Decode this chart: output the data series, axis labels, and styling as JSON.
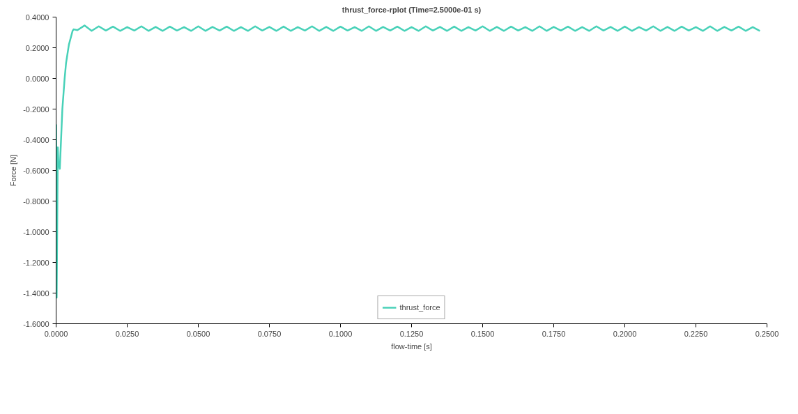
{
  "chart_data": {
    "type": "line",
    "title": "thrust_force-rplot (Time=2.5000e-01 s)",
    "xlabel": "flow-time [s]",
    "ylabel": "Force [N]",
    "xlim": [
      0,
      0.25
    ],
    "ylim": [
      -1.6,
      0.4
    ],
    "xticks": [
      {
        "value": 0,
        "label": "0.0000"
      },
      {
        "value": 0.025,
        "label": "0.0250"
      },
      {
        "value": 0.05,
        "label": "0.0500"
      },
      {
        "value": 0.075,
        "label": "0.0750"
      },
      {
        "value": 0.1,
        "label": "0.1000"
      },
      {
        "value": 0.125,
        "label": "0.1250"
      },
      {
        "value": 0.15,
        "label": "0.1500"
      },
      {
        "value": 0.175,
        "label": "0.1750"
      },
      {
        "value": 0.2,
        "label": "0.2000"
      },
      {
        "value": 0.225,
        "label": "0.2250"
      },
      {
        "value": 0.25,
        "label": "0.2500"
      }
    ],
    "yticks": [
      {
        "value": -1.6,
        "label": "-1.6000"
      },
      {
        "value": -1.4,
        "label": "-1.4000"
      },
      {
        "value": -1.2,
        "label": "-1.2000"
      },
      {
        "value": -1.0,
        "label": "-1.0000"
      },
      {
        "value": -0.8,
        "label": "-0.8000"
      },
      {
        "value": -0.6,
        "label": "-0.6000"
      },
      {
        "value": -0.4,
        "label": "-0.4000"
      },
      {
        "value": -0.2,
        "label": "-0.2000"
      },
      {
        "value": 0,
        "label": "0.0000"
      },
      {
        "value": 0.2,
        "label": "0.2000"
      },
      {
        "value": 0.4,
        "label": "0.4000"
      }
    ],
    "grid": false,
    "legend": "bottom",
    "line_style": "solid",
    "marker": "none",
    "series": [
      {
        "name": "thrust_force",
        "color": "#48d1b8",
        "x": [
          0,
          0.0002,
          0.0006,
          0.0008,
          0.0013,
          0.0022,
          0.003,
          0.0035,
          0.0045,
          0.0058,
          0.0062,
          0.0075,
          0.01,
          0.0125,
          0.015,
          0.0175,
          0.02,
          0.0225,
          0.025,
          0.0275,
          0.03,
          0.0325,
          0.035,
          0.0375,
          0.04,
          0.0425,
          0.045,
          0.0475,
          0.05,
          0.0525,
          0.055,
          0.0575,
          0.06,
          0.0625,
          0.065,
          0.0675,
          0.07,
          0.0725,
          0.075,
          0.0775,
          0.08,
          0.0825,
          0.085,
          0.0875,
          0.09,
          0.0925,
          0.095,
          0.0975,
          0.1,
          0.1025,
          0.105,
          0.1075,
          0.11,
          0.1125,
          0.115,
          0.1175,
          0.12,
          0.1225,
          0.125,
          0.1275,
          0.13,
          0.1325,
          0.135,
          0.1375,
          0.14,
          0.1425,
          0.145,
          0.1475,
          0.15,
          0.1525,
          0.155,
          0.1575,
          0.16,
          0.1625,
          0.165,
          0.1675,
          0.17,
          0.1725,
          0.175,
          0.1775,
          0.18,
          0.1825,
          0.185,
          0.1875,
          0.19,
          0.1925,
          0.195,
          0.1975,
          0.2,
          0.2025,
          0.205,
          0.2075,
          0.21,
          0.2125,
          0.215,
          0.2175,
          0.22,
          0.2225,
          0.225,
          0.2275,
          0.23,
          0.2325,
          0.235,
          0.2375,
          0.24,
          0.2425,
          0.245,
          0.2475
        ],
        "values": [
          -0.3,
          -1.43,
          -0.45,
          -0.55,
          -0.59,
          -0.2,
          0.0,
          0.1,
          0.22,
          0.31,
          0.32,
          0.315,
          0.345,
          0.31,
          0.34,
          0.312,
          0.338,
          0.31,
          0.335,
          0.312,
          0.34,
          0.31,
          0.336,
          0.31,
          0.338,
          0.312,
          0.335,
          0.31,
          0.34,
          0.31,
          0.336,
          0.312,
          0.338,
          0.31,
          0.335,
          0.31,
          0.34,
          0.312,
          0.336,
          0.31,
          0.338,
          0.31,
          0.335,
          0.312,
          0.34,
          0.31,
          0.336,
          0.31,
          0.338,
          0.312,
          0.335,
          0.31,
          0.34,
          0.31,
          0.336,
          0.312,
          0.338,
          0.31,
          0.335,
          0.31,
          0.34,
          0.312,
          0.336,
          0.31,
          0.338,
          0.31,
          0.335,
          0.312,
          0.34,
          0.31,
          0.336,
          0.31,
          0.338,
          0.312,
          0.335,
          0.31,
          0.34,
          0.31,
          0.336,
          0.312,
          0.338,
          0.31,
          0.335,
          0.31,
          0.34,
          0.312,
          0.336,
          0.31,
          0.338,
          0.31,
          0.335,
          0.312,
          0.34,
          0.31,
          0.336,
          0.31,
          0.338,
          0.312,
          0.335,
          0.31,
          0.34,
          0.31,
          0.336,
          0.312,
          0.338,
          0.31,
          0.335,
          0.31
        ]
      }
    ]
  }
}
